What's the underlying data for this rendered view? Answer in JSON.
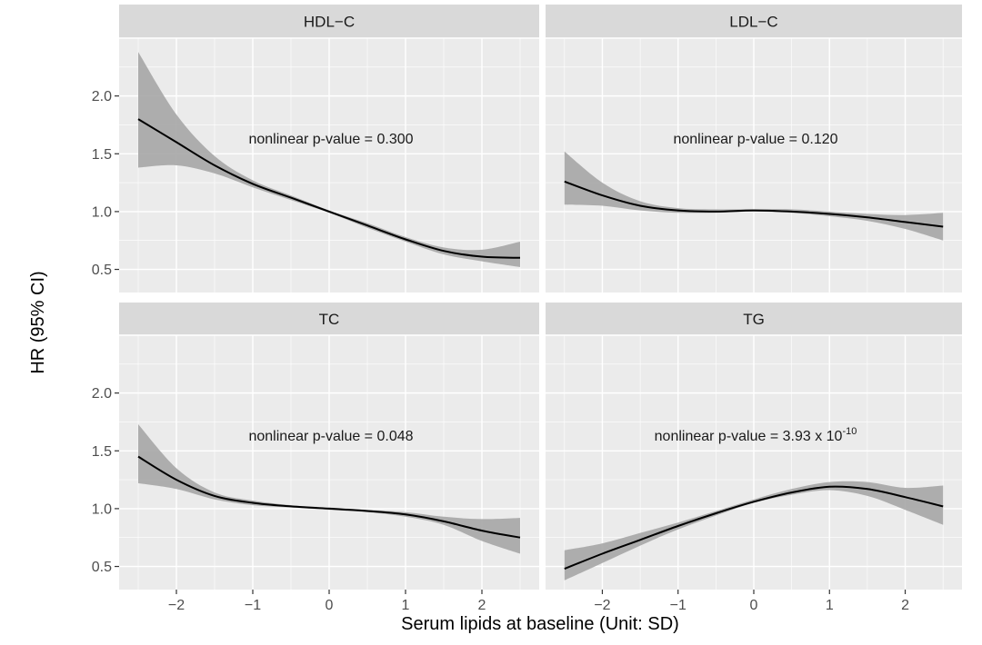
{
  "figure": {
    "ylabel": "HR (95% CI)",
    "xlabel": "Serum lipids at baseline (Unit: SD)",
    "y_ticks": [
      "0.5",
      "1.0",
      "1.5",
      "2.0"
    ],
    "x_ticks": [
      "−2",
      "−1",
      "0",
      "1",
      "2"
    ]
  },
  "chart_data": [
    {
      "type": "line",
      "panel": "HDL−C",
      "title": "HDL−C",
      "annotation": {
        "text": "nonlinear p-value = 0.300",
        "base": "",
        "exponent": ""
      },
      "xlim": [
        -2.75,
        2.75
      ],
      "ylim": [
        0.3,
        2.5
      ],
      "x": [
        -2.5,
        -2.0,
        -1.5,
        -1.0,
        -0.5,
        0.0,
        0.5,
        1.0,
        1.5,
        2.0,
        2.5
      ],
      "hr": [
        1.8,
        1.6,
        1.4,
        1.24,
        1.12,
        1.0,
        0.88,
        0.76,
        0.66,
        0.61,
        0.6
      ],
      "lower": [
        1.38,
        1.4,
        1.33,
        1.21,
        1.1,
        0.99,
        0.86,
        0.74,
        0.63,
        0.57,
        0.52
      ],
      "upper": [
        2.38,
        1.84,
        1.48,
        1.27,
        1.14,
        1.01,
        0.9,
        0.78,
        0.69,
        0.67,
        0.74
      ]
    },
    {
      "type": "line",
      "panel": "LDL−C",
      "title": "LDL−C",
      "annotation": {
        "text": "nonlinear p-value = 0.120",
        "base": "",
        "exponent": ""
      },
      "xlim": [
        -2.75,
        2.75
      ],
      "ylim": [
        0.3,
        2.5
      ],
      "x": [
        -2.5,
        -2.0,
        -1.5,
        -1.0,
        -0.5,
        0.0,
        0.5,
        1.0,
        1.5,
        2.0,
        2.5
      ],
      "hr": [
        1.26,
        1.14,
        1.05,
        1.01,
        1.0,
        1.01,
        1.0,
        0.98,
        0.95,
        0.91,
        0.87
      ],
      "lower": [
        1.06,
        1.05,
        1.01,
        0.99,
        0.99,
        1.0,
        0.99,
        0.96,
        0.92,
        0.85,
        0.75
      ],
      "upper": [
        1.52,
        1.25,
        1.09,
        1.03,
        1.02,
        1.02,
        1.02,
        1.0,
        0.98,
        0.97,
        0.99
      ]
    },
    {
      "type": "line",
      "panel": "TC",
      "title": "TC",
      "annotation": {
        "text": "nonlinear p-value = 0.048",
        "base": "",
        "exponent": ""
      },
      "xlim": [
        -2.75,
        2.75
      ],
      "ylim": [
        0.3,
        2.5
      ],
      "x": [
        -2.5,
        -2.0,
        -1.5,
        -1.0,
        -0.5,
        0.0,
        0.5,
        1.0,
        1.5,
        2.0,
        2.5
      ],
      "hr": [
        1.45,
        1.25,
        1.11,
        1.05,
        1.02,
        1.0,
        0.98,
        0.95,
        0.89,
        0.81,
        0.75
      ],
      "lower": [
        1.22,
        1.17,
        1.08,
        1.03,
        1.01,
        0.99,
        0.97,
        0.93,
        0.86,
        0.72,
        0.61
      ],
      "upper": [
        1.73,
        1.35,
        1.14,
        1.07,
        1.03,
        1.01,
        0.99,
        0.97,
        0.93,
        0.91,
        0.92
      ]
    },
    {
      "type": "line",
      "panel": "TG",
      "title": "TG",
      "annotation": {
        "text": "",
        "base": "nonlinear p-value = 3.93 x 10",
        "exponent": "-10"
      },
      "xlim": [
        -2.75,
        2.75
      ],
      "ylim": [
        0.3,
        2.5
      ],
      "x": [
        -2.5,
        -2.0,
        -1.5,
        -1.0,
        -0.5,
        0.0,
        0.5,
        1.0,
        1.5,
        2.0,
        2.5
      ],
      "hr": [
        0.48,
        0.61,
        0.73,
        0.85,
        0.96,
        1.06,
        1.14,
        1.19,
        1.17,
        1.1,
        1.02
      ],
      "lower": [
        0.38,
        0.53,
        0.68,
        0.82,
        0.94,
        1.05,
        1.12,
        1.16,
        1.11,
        0.99,
        0.86
      ],
      "upper": [
        0.64,
        0.7,
        0.79,
        0.88,
        0.98,
        1.08,
        1.17,
        1.23,
        1.23,
        1.18,
        1.2
      ]
    }
  ]
}
